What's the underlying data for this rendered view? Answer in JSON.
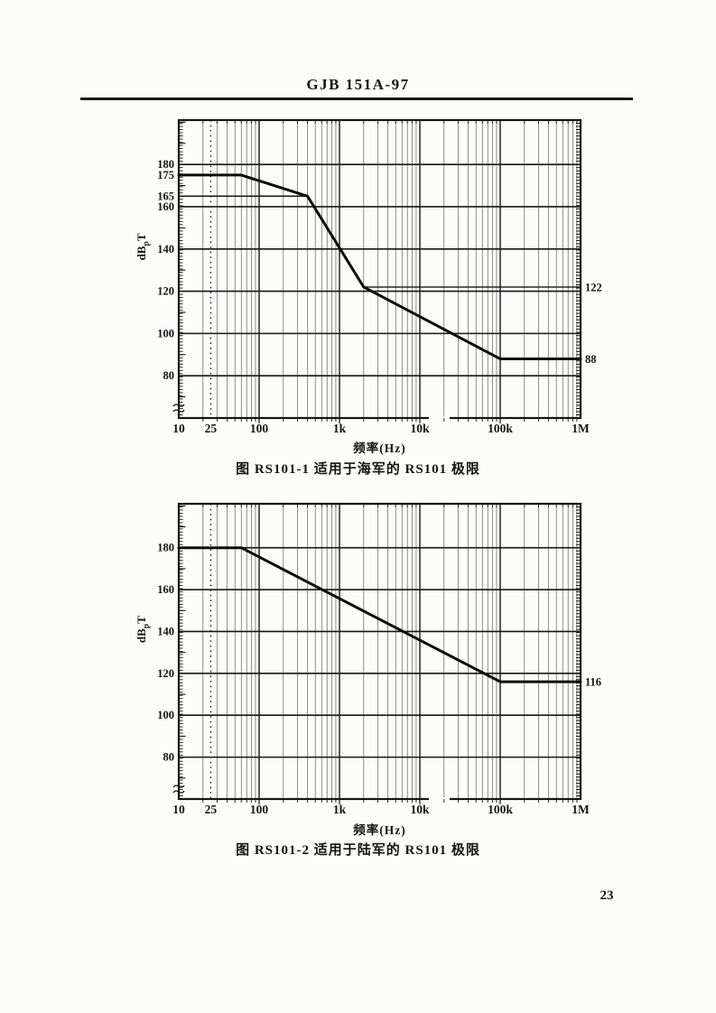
{
  "page": {
    "header": "GJB 151A-97",
    "page_number": "23"
  },
  "chart_data": [
    {
      "type": "line",
      "id": "rs101-1",
      "caption": "图 RS101-1  适用于海军的 RS101 极限",
      "xlabel": "频率(Hz)",
      "ylabel": "dBpT",
      "ylabel_parts": {
        "pre": "dB",
        "sub": "p",
        "post": "T"
      },
      "xscale": "log",
      "xlim": [
        10,
        1000000
      ],
      "ylim_display": [
        60,
        201
      ],
      "y_axis_break": true,
      "grid": "log-paper",
      "x_ticks": [
        {
          "value": 10,
          "label": "10"
        },
        {
          "value": 25,
          "label": "25"
        },
        {
          "value": 100,
          "label": "100"
        },
        {
          "value": 1000,
          "label": "1k"
        },
        {
          "value": 10000,
          "label": "10k"
        },
        {
          "value": 100000,
          "label": "100k"
        },
        {
          "value": 1000000,
          "label": "1M"
        }
      ],
      "y_ticks": [
        {
          "value": 180,
          "label": "180"
        },
        {
          "value": 175,
          "label": "175"
        },
        {
          "value": 165,
          "label": "165"
        },
        {
          "value": 160,
          "label": "160"
        },
        {
          "value": 140,
          "label": "140"
        },
        {
          "value": 120,
          "label": "120"
        },
        {
          "value": 100,
          "label": "100"
        },
        {
          "value": 80,
          "label": "80"
        }
      ],
      "series": [
        {
          "name": "RS101-1 limit",
          "points": [
            [
              10,
              175
            ],
            [
              60,
              175
            ],
            [
              400,
              165
            ],
            [
              2000,
              122
            ],
            [
              100000,
              88
            ],
            [
              1000000,
              88
            ]
          ]
        }
      ],
      "reference_lines": [
        {
          "y": 165,
          "x1": 10,
          "x2": 400
        },
        {
          "y": 122,
          "x1": 2000,
          "x2": 1000000
        }
      ],
      "right_edge_labels": [
        {
          "y": 122,
          "label": "122"
        },
        {
          "y": 88,
          "label": "88"
        }
      ],
      "dotted_vline_x": 25
    },
    {
      "type": "line",
      "id": "rs101-2",
      "caption": "图 RS101-2  适用于陆军的 RS101 极限",
      "xlabel": "频率(Hz)",
      "ylabel": "dBpT",
      "ylabel_parts": {
        "pre": "dB",
        "sub": "p",
        "post": "T"
      },
      "xscale": "log",
      "xlim": [
        10,
        1000000
      ],
      "ylim_display": [
        60,
        201
      ],
      "y_axis_break": true,
      "grid": "log-paper",
      "x_ticks": [
        {
          "value": 10,
          "label": "10"
        },
        {
          "value": 25,
          "label": "25"
        },
        {
          "value": 100,
          "label": "100"
        },
        {
          "value": 1000,
          "label": "1k"
        },
        {
          "value": 10000,
          "label": "10k"
        },
        {
          "value": 100000,
          "label": "100k"
        },
        {
          "value": 1000000,
          "label": "1M"
        }
      ],
      "y_ticks": [
        {
          "value": 180,
          "label": "180"
        },
        {
          "value": 160,
          "label": "160"
        },
        {
          "value": 140,
          "label": "140"
        },
        {
          "value": 120,
          "label": "120"
        },
        {
          "value": 100,
          "label": "100"
        },
        {
          "value": 80,
          "label": "80"
        }
      ],
      "series": [
        {
          "name": "RS101-2 limit",
          "points": [
            [
              10,
              180
            ],
            [
              60,
              180
            ],
            [
              100000,
              116
            ],
            [
              1000000,
              116
            ]
          ]
        }
      ],
      "reference_lines": [],
      "right_edge_labels": [
        {
          "y": 116,
          "label": "116"
        }
      ],
      "dotted_vline_x": 25
    }
  ]
}
